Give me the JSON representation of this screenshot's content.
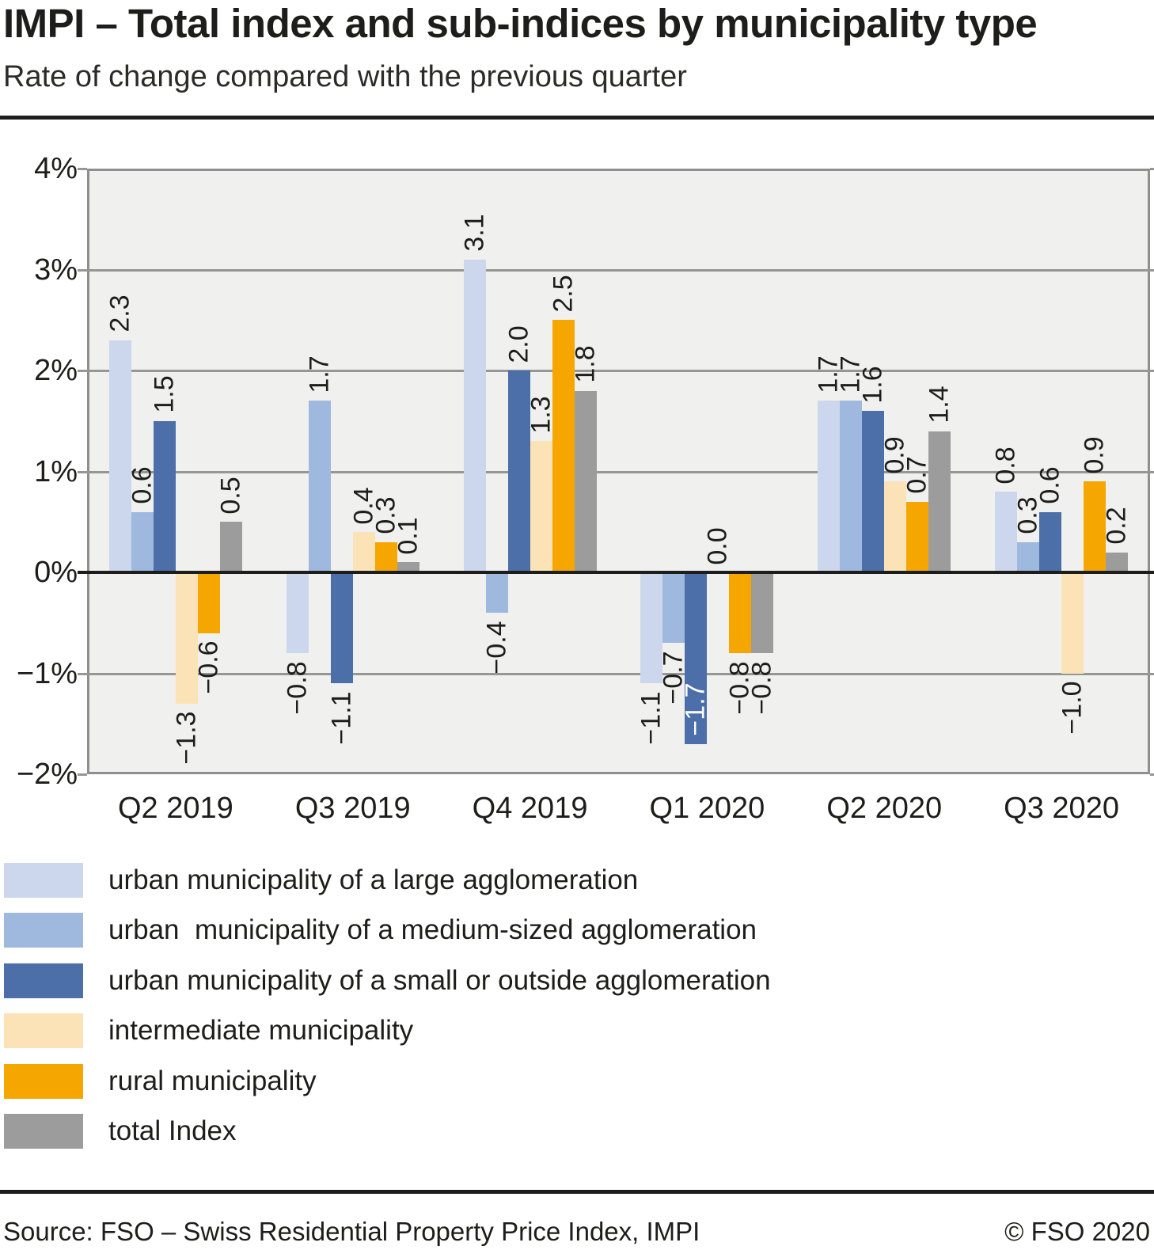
{
  "header": {
    "title": "IMPI – Total index and sub-indices by municipality type",
    "subtitle": "Rate of change compared with the previous quarter"
  },
  "chart_data": {
    "type": "bar",
    "unit": "%",
    "title": "IMPI – Total index and sub-indices by municipality type",
    "subtitle": "Rate of change compared with the previous quarter",
    "categories": [
      "Q2 2019",
      "Q3 2019",
      "Q4 2019",
      "Q1 2020",
      "Q2 2020",
      "Q3 2020"
    ],
    "series": [
      {
        "name": "urban municipality of a large agglomeration",
        "color": "#ccd7ee",
        "values": [
          2.3,
          -0.8,
          3.1,
          -1.1,
          1.7,
          0.8
        ]
      },
      {
        "name": "urban  municipality of a medium-sized agglomeration",
        "color": "#9fb8de",
        "values": [
          0.6,
          1.7,
          -0.4,
          -0.7,
          1.7,
          0.3
        ]
      },
      {
        "name": "urban municipality of a small or outside agglomeration",
        "color": "#4c6fa9",
        "values": [
          1.5,
          -1.1,
          2.0,
          -1.7,
          1.6,
          0.6
        ]
      },
      {
        "name": "intermediate municipality",
        "color": "#fbe3b7",
        "values": [
          -1.3,
          0.4,
          1.3,
          0.0,
          0.9,
          -1.0
        ]
      },
      {
        "name": "rural municipality",
        "color": "#f5a600",
        "values": [
          -0.6,
          0.3,
          2.5,
          -0.8,
          0.7,
          0.9
        ]
      },
      {
        "name": "total Index",
        "color": "#9c9c9c",
        "values": [
          0.5,
          0.1,
          1.8,
          -0.8,
          1.4,
          0.2
        ]
      }
    ],
    "yticks": [
      4,
      3,
      2,
      1,
      0,
      -1,
      -2
    ],
    "ylim": [
      -2,
      4
    ],
    "grid": "horizontal",
    "legend_position": "bottom-left",
    "value_labels": "rotated-90",
    "label_overrides": [
      {
        "category_index": 3,
        "series_index": 2,
        "position": "inside",
        "color": "#ffffff"
      }
    ]
  },
  "footer": {
    "source": "Source: FSO – Swiss Residential Property Price Index, IMPI",
    "copyright": "© FSO 2020"
  }
}
